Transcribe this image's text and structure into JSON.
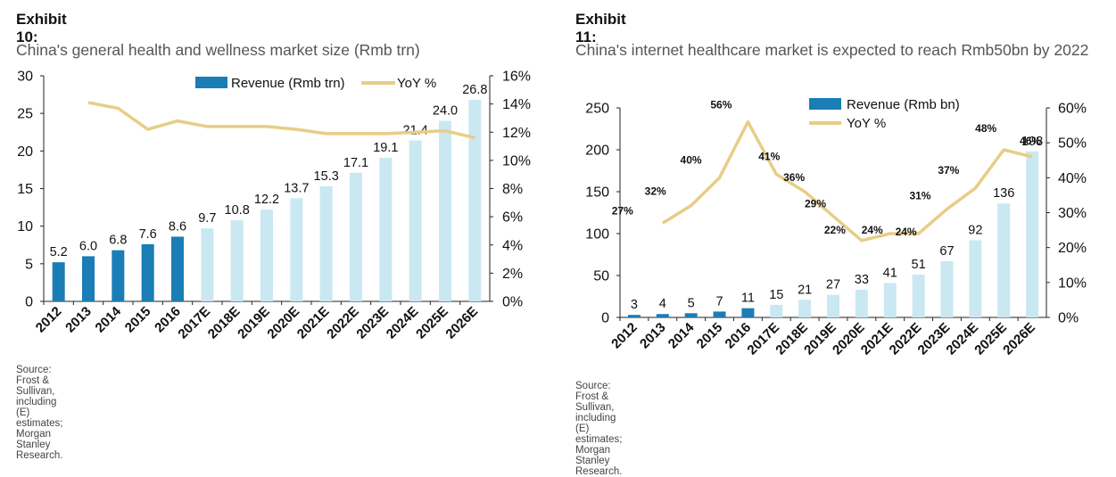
{
  "exhibits": [
    {
      "label": "Exhibit 10:",
      "title": "China's general health and wellness market size (Rmb trn)",
      "source": "Source: Frost & Sullivan, including (E) estimates; Morgan Stanley Research."
    },
    {
      "label": "Exhibit 11:",
      "title": "China's internet healthcare market is expected to reach Rmb50bn by 2022",
      "source": "Source: Frost & Sullivan, including (E) estimates; Morgan Stanley Research."
    }
  ],
  "chart_data": [
    {
      "type": "bar",
      "title": "China's general health and wellness market size (Rmb trn)",
      "categories": [
        "2012",
        "2013",
        "2014",
        "2015",
        "2016",
        "2017E",
        "2018E",
        "2019E",
        "2020E",
        "2021E",
        "2022E",
        "2023E",
        "2024E",
        "2025E",
        "2026E"
      ],
      "series": [
        {
          "name": "Revenue (Rmb trn)",
          "kind": "bar",
          "axis": "left",
          "values": [
            5.2,
            6.0,
            6.8,
            7.6,
            8.6,
            9.7,
            10.8,
            12.2,
            13.7,
            15.3,
            17.1,
            19.1,
            21.4,
            24.0,
            26.8
          ],
          "labels": [
            "5.2",
            "6.0",
            "6.8",
            "7.6",
            "8.6",
            "9.7",
            "10.8",
            "12.2",
            "13.7",
            "15.3",
            "17.1",
            "19.1",
            "21.4",
            "24.0",
            "26.8"
          ]
        },
        {
          "name": "YoY %",
          "kind": "line",
          "axis": "right",
          "values": [
            null,
            14.1,
            13.7,
            12.2,
            12.8,
            12.4,
            12.4,
            12.4,
            12.2,
            11.9,
            11.9,
            11.9,
            12.0,
            12.1,
            11.6
          ]
        }
      ],
      "ylim": [
        0,
        30
      ],
      "yticks": [
        0,
        5,
        10,
        15,
        20,
        25,
        30
      ],
      "ytick_labels": [
        "0",
        "5",
        "10",
        "15",
        "20",
        "25",
        "30"
      ],
      "y2lim": [
        0,
        16
      ],
      "y2ticks": [
        0,
        2,
        4,
        6,
        8,
        10,
        12,
        14,
        16
      ],
      "y2tick_labels": [
        "0%",
        "2%",
        "4%",
        "6%",
        "8%",
        "10%",
        "12%",
        "14%",
        "16%"
      ],
      "estimate_start_index": 5,
      "legend_position": "top",
      "grid": false,
      "colors": {
        "actual": "#1a7db6",
        "estimate": "#c9e8f2",
        "line": "#e8cd86"
      }
    },
    {
      "type": "bar",
      "title": "China's internet healthcare market is expected to reach Rmb50bn by 2022",
      "categories": [
        "2012",
        "2013",
        "2014",
        "2015",
        "2016",
        "2017E",
        "2018E",
        "2019E",
        "2020E",
        "2021E",
        "2022E",
        "2023E",
        "2024E",
        "2025E",
        "2026E"
      ],
      "series": [
        {
          "name": "Revenue (Rmb bn)",
          "kind": "bar",
          "axis": "left",
          "values": [
            3,
            4,
            5,
            7,
            11,
            15,
            21,
            27,
            33,
            41,
            51,
            67,
            92,
            136,
            198
          ],
          "labels": [
            "3",
            "4",
            "5",
            "7",
            "11",
            "15",
            "21",
            "27",
            "33",
            "41",
            "51",
            "67",
            "92",
            "136",
            "198"
          ]
        },
        {
          "name": "YoY %",
          "kind": "line",
          "axis": "right",
          "values": [
            null,
            27,
            32,
            40,
            56,
            41,
            36,
            29,
            22,
            24,
            24,
            31,
            37,
            48,
            46
          ],
          "labels": [
            "",
            "27%",
            "32%",
            "40%",
            "56%",
            "41%",
            "36%",
            "29%",
            "22%",
            "24%",
            "24%",
            "31%",
            "37%",
            "48%",
            "46%"
          ]
        }
      ],
      "ylim": [
        0,
        250
      ],
      "yticks": [
        0,
        50,
        100,
        150,
        200,
        250
      ],
      "ytick_labels": [
        "0",
        "50",
        "100",
        "150",
        "200",
        "250"
      ],
      "y2lim": [
        0,
        60
      ],
      "y2ticks": [
        0,
        10,
        20,
        30,
        40,
        50,
        60
      ],
      "y2tick_labels": [
        "0%",
        "10%",
        "20%",
        "30%",
        "40%",
        "50%",
        "60%"
      ],
      "estimate_start_index": 5,
      "legend_position": "top-left",
      "grid": false,
      "colors": {
        "actual": "#1a7db6",
        "estimate": "#c9e8f2",
        "line": "#e8cd86"
      }
    }
  ]
}
